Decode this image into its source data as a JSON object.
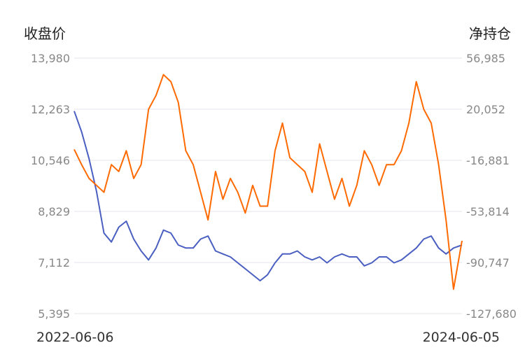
{
  "chart_data": {
    "type": "line",
    "y_left_label": "收盘价",
    "y_right_label": "净持仓",
    "y_left_ticks": [
      "13,980",
      "12,263",
      "10,546",
      "8,829",
      "7,112",
      "5,395"
    ],
    "y_right_ticks": [
      "56,985",
      "20,052",
      "-16,881",
      "-53,814",
      "-90,747",
      "-127,680"
    ],
    "ylim_left": [
      5395,
      13980
    ],
    "ylim_right": [
      -127680,
      56985
    ],
    "x_start": "2022-06-06",
    "x_end": "2024-06-05",
    "grid": true,
    "series": [
      {
        "axis": "left",
        "color": "#4a5fc1",
        "x": [
          "2022-06-06",
          "2022-06-20",
          "2022-07-04",
          "2022-07-18",
          "2022-08-01",
          "2022-08-15",
          "2022-08-29",
          "2022-09-12",
          "2022-09-26",
          "2022-10-10",
          "2022-10-24",
          "2022-11-07",
          "2022-11-21",
          "2022-12-05",
          "2022-12-19",
          "2023-01-02",
          "2023-01-16",
          "2023-01-30",
          "2023-02-13",
          "2023-02-27",
          "2023-03-13",
          "2023-03-27",
          "2023-04-10",
          "2023-04-24",
          "2023-05-08",
          "2023-05-22",
          "2023-06-05",
          "2023-06-19",
          "2023-07-03",
          "2023-07-17",
          "2023-07-31",
          "2023-08-14",
          "2023-08-28",
          "2023-09-11",
          "2023-09-25",
          "2023-10-09",
          "2023-10-23",
          "2023-11-06",
          "2023-11-20",
          "2023-12-04",
          "2023-12-18",
          "2024-01-01",
          "2024-01-15",
          "2024-01-29",
          "2024-02-12",
          "2024-02-26",
          "2024-03-11",
          "2024-03-25",
          "2024-04-08",
          "2024-04-22",
          "2024-05-06",
          "2024-05-20",
          "2024-06-05"
        ],
        "values": [
          12200,
          11500,
          10600,
          9500,
          8100,
          7800,
          8300,
          8500,
          7900,
          7500,
          7200,
          7600,
          8200,
          8100,
          7700,
          7600,
          7600,
          7900,
          8000,
          7500,
          7400,
          7300,
          7100,
          6900,
          6700,
          6500,
          6700,
          7100,
          7400,
          7400,
          7500,
          7300,
          7200,
          7300,
          7100,
          7300,
          7400,
          7300,
          7300,
          7000,
          7100,
          7300,
          7300,
          7100,
          7200,
          7400,
          7600,
          7900,
          8000,
          7600,
          7400,
          7600,
          7700
        ]
      },
      {
        "axis": "right",
        "color": "#ff6a00",
        "x": [
          "2022-06-06",
          "2022-06-20",
          "2022-07-04",
          "2022-07-18",
          "2022-08-01",
          "2022-08-15",
          "2022-08-29",
          "2022-09-12",
          "2022-09-26",
          "2022-10-10",
          "2022-10-24",
          "2022-11-07",
          "2022-11-21",
          "2022-12-05",
          "2022-12-19",
          "2023-01-02",
          "2023-01-16",
          "2023-01-30",
          "2023-02-13",
          "2023-02-27",
          "2023-03-13",
          "2023-03-27",
          "2023-04-10",
          "2023-04-24",
          "2023-05-08",
          "2023-05-22",
          "2023-06-05",
          "2023-06-19",
          "2023-07-03",
          "2023-07-17",
          "2023-07-31",
          "2023-08-14",
          "2023-08-28",
          "2023-09-11",
          "2023-09-25",
          "2023-10-09",
          "2023-10-23",
          "2023-11-06",
          "2023-11-20",
          "2023-12-04",
          "2023-12-18",
          "2024-01-01",
          "2024-01-15",
          "2024-01-29",
          "2024-02-12",
          "2024-02-26",
          "2024-03-11",
          "2024-03-25",
          "2024-04-08",
          "2024-04-22",
          "2024-05-06",
          "2024-05-20",
          "2024-06-05"
        ],
        "values": [
          -9000,
          -20000,
          -30000,
          -35000,
          -40000,
          -20000,
          -25000,
          -10000,
          -30000,
          -20000,
          20000,
          30000,
          45000,
          40000,
          25000,
          -10000,
          -20000,
          -40000,
          -60000,
          -25000,
          -45000,
          -30000,
          -40000,
          -55000,
          -35000,
          -50000,
          -50000,
          -10000,
          10000,
          -15000,
          -20000,
          -25000,
          -40000,
          -5000,
          -25000,
          -45000,
          -30000,
          -50000,
          -35000,
          -10000,
          -20000,
          -35000,
          -20000,
          -20000,
          -10000,
          10000,
          40000,
          20000,
          10000,
          -20000,
          -60000,
          -110000,
          -75000
        ]
      }
    ]
  }
}
